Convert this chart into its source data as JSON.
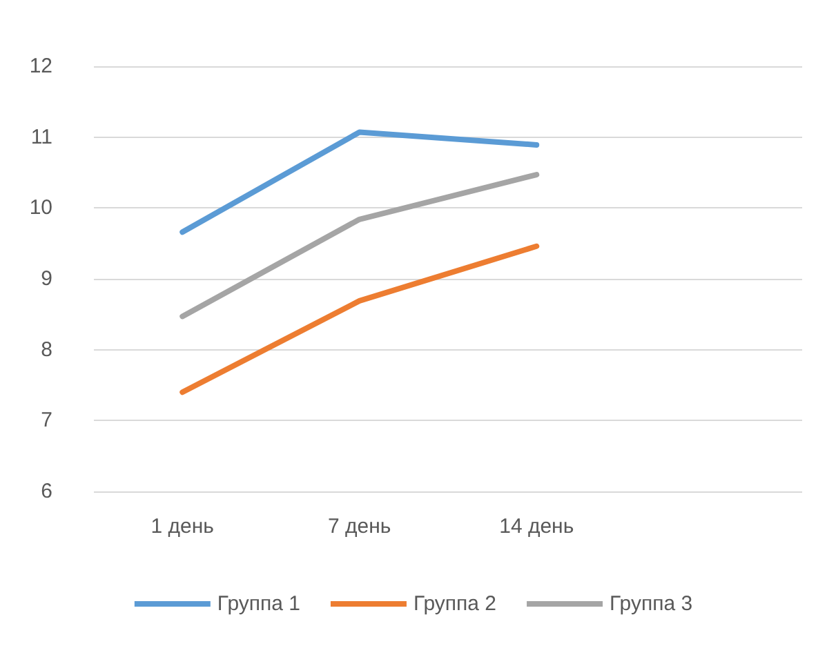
{
  "chart_data": {
    "type": "line",
    "categories": [
      "1 день",
      "7 день",
      "14 день",
      null
    ],
    "series": [
      {
        "name": "Группа 1",
        "color": "#5b9bd5",
        "values": [
          9.66,
          11.07,
          10.89,
          null
        ]
      },
      {
        "name": "Группа 2",
        "color": "#ed7d31",
        "values": [
          7.4,
          8.69,
          9.46,
          null
        ]
      },
      {
        "name": "Группа 3",
        "color": "#a5a5a5",
        "values": [
          8.47,
          9.84,
          10.47,
          null
        ]
      }
    ],
    "ylim": [
      6,
      12
    ],
    "yticks": [
      6,
      7,
      8,
      9,
      10,
      11,
      12
    ],
    "grid": "y",
    "legend": "bottom",
    "marker": "none"
  }
}
